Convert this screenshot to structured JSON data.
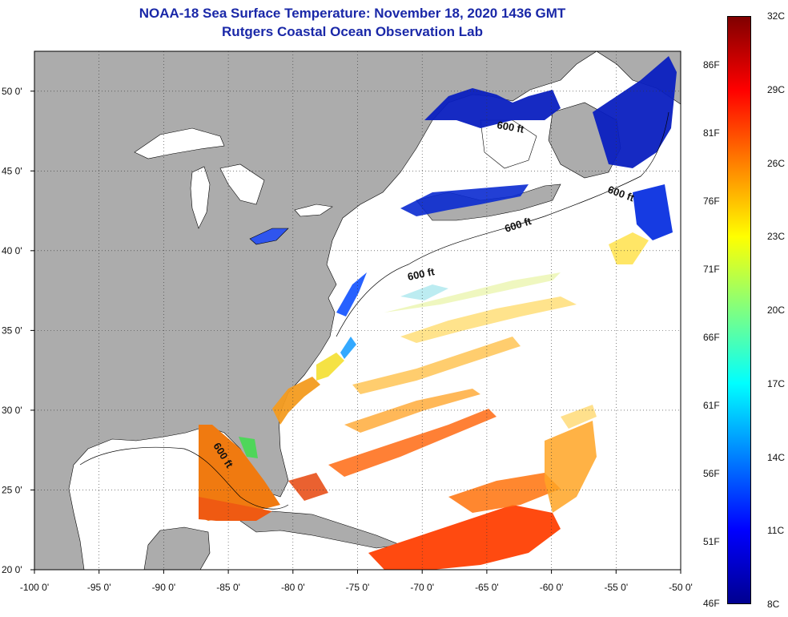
{
  "header": {
    "title": "NOAA-18 Sea Surface Temperature:  November 18, 2020 1436 GMT",
    "subtitle": "Rutgers Coastal Ocean Observation Lab"
  },
  "map": {
    "lon_range": [
      -100,
      -50
    ],
    "lat_range": [
      20,
      52.5
    ],
    "lon_ticks": [
      {
        "value": -100,
        "label": "-100 0'"
      },
      {
        "value": -95,
        "label": "-95 0'"
      },
      {
        "value": -90,
        "label": "-90 0'"
      },
      {
        "value": -85,
        "label": "-85 0'"
      },
      {
        "value": -80,
        "label": "-80 0'"
      },
      {
        "value": -75,
        "label": "-75 0'"
      },
      {
        "value": -70,
        "label": "-70 0'"
      },
      {
        "value": -65,
        "label": "-65 0'"
      },
      {
        "value": -60,
        "label": "-60 0'"
      },
      {
        "value": -55,
        "label": "-55 0'"
      },
      {
        "value": -50,
        "label": "-50 0'"
      }
    ],
    "lat_ticks": [
      {
        "value": 20,
        "label": "20 0'"
      },
      {
        "value": 25,
        "label": "25 0'"
      },
      {
        "value": 30,
        "label": "30 0'"
      },
      {
        "value": 35,
        "label": "35 0'"
      },
      {
        "value": 40,
        "label": "40 0'"
      },
      {
        "value": 45,
        "label": "45 0'"
      },
      {
        "value": 50,
        "label": "50 0'"
      }
    ],
    "contour_label": "600 ft",
    "land_color": "#acacac",
    "grid": "dotted"
  },
  "colorbar": {
    "range_c": [
      8,
      32
    ],
    "celsius_ticks": [
      {
        "value": 8,
        "label": "8C"
      },
      {
        "value": 11,
        "label": "11C"
      },
      {
        "value": 14,
        "label": "14C"
      },
      {
        "value": 17,
        "label": "17C"
      },
      {
        "value": 20,
        "label": "20C"
      },
      {
        "value": 23,
        "label": "23C"
      },
      {
        "value": 26,
        "label": "26C"
      },
      {
        "value": 29,
        "label": "29C"
      },
      {
        "value": 32,
        "label": "32C"
      }
    ],
    "fahrenheit_ticks": [
      {
        "value": 46,
        "label": "46F"
      },
      {
        "value": 51,
        "label": "51F"
      },
      {
        "value": 56,
        "label": "56F"
      },
      {
        "value": 61,
        "label": "61F"
      },
      {
        "value": 66,
        "label": "66F"
      },
      {
        "value": 71,
        "label": "71F"
      },
      {
        "value": 76,
        "label": "76F"
      },
      {
        "value": 81,
        "label": "81F"
      },
      {
        "value": 86,
        "label": "86F"
      }
    ],
    "colors": [
      "#00008f",
      "#0000ff",
      "#0080ff",
      "#00ffff",
      "#80ff80",
      "#ffff00",
      "#ff8000",
      "#ff0000",
      "#800000"
    ]
  }
}
